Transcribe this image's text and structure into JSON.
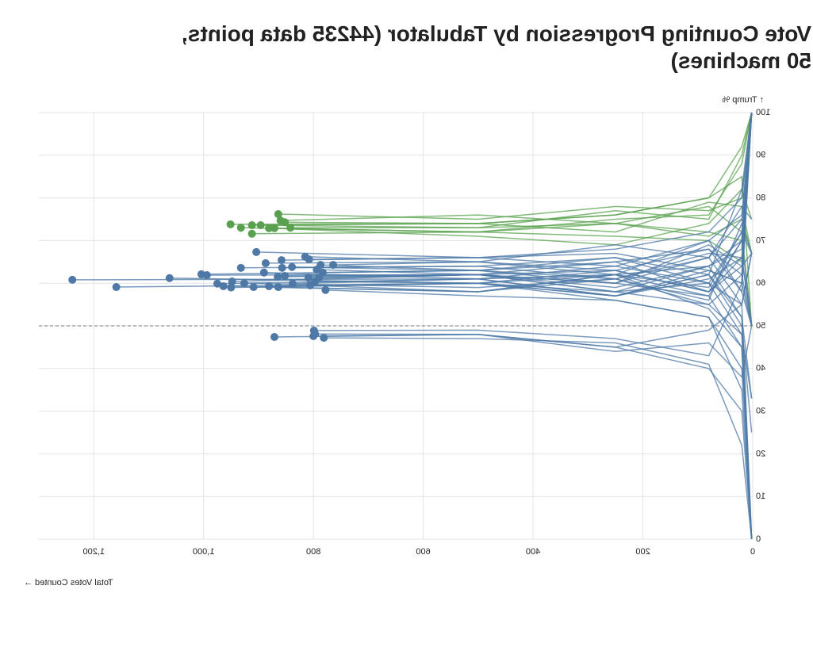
{
  "chart_data": {
    "type": "line",
    "title": "Vote Counting Progression by Tabulator (44235 data points, 50 machines)",
    "x_label": "Total Votes Counted →",
    "y_label": "↑ Trump %",
    "xlim": [
      0,
      1300
    ],
    "ylim": [
      0,
      100
    ],
    "xticks": [
      0,
      200,
      400,
      600,
      800,
      {
        "value": 1000,
        "label": "1,000"
      },
      {
        "value": 1200,
        "label": "1,200"
      }
    ],
    "yticks": [
      0,
      10,
      20,
      30,
      40,
      50,
      60,
      70,
      80,
      90,
      100
    ],
    "grid": true,
    "reference_line": 50,
    "mirrored": true,
    "series": [
      {
        "color": "#59a14f",
        "x": [
          2,
          20,
          80,
          250,
          500,
          864
        ],
        "values": [
          100,
          80,
          77,
          78,
          75,
          76.2
        ]
      },
      {
        "color": "#59a14f",
        "x": [
          2,
          20,
          80,
          250,
          500,
          951
        ],
        "values": [
          50,
          85,
          80,
          76,
          74,
          73.8
        ]
      },
      {
        "color": "#59a14f",
        "x": [
          2,
          20,
          80,
          250,
          500,
          932
        ],
        "values": [
          100,
          70,
          72,
          74,
          72,
          73
        ]
      },
      {
        "color": "#59a14f",
        "x": [
          2,
          20,
          80,
          250,
          500,
          912
        ],
        "values": [
          67,
          78,
          79,
          72,
          74,
          73.6
        ]
      },
      {
        "color": "#59a14f",
        "x": [
          2,
          20,
          80,
          250,
          500,
          896
        ],
        "values": [
          100,
          90,
          75,
          77,
          73,
          73.6
        ]
      },
      {
        "color": "#59a14f",
        "x": [
          2,
          20,
          80,
          250,
          500,
          912
        ],
        "values": [
          100,
          65,
          70,
          71,
          72,
          71.6
        ]
      },
      {
        "color": "#59a14f",
        "x": [
          2,
          20,
          80,
          250,
          500,
          881
        ],
        "values": [
          75,
          82,
          74,
          69,
          71,
          72.9
        ]
      },
      {
        "color": "#59a14f",
        "x": [
          2,
          20,
          80,
          250,
          500,
          871
        ],
        "values": [
          100,
          88,
          76,
          75,
          72,
          72.9
        ]
      },
      {
        "color": "#59a14f",
        "x": [
          2,
          20,
          80,
          250,
          500,
          860
        ],
        "values": [
          50,
          72,
          78,
          74,
          76,
          74.7
        ]
      },
      {
        "color": "#59a14f",
        "x": [
          2,
          20,
          80,
          250,
          500,
          852
        ],
        "values": [
          100,
          92,
          80,
          76,
          74,
          74.3
        ]
      },
      {
        "color": "#59a14f",
        "x": [
          2,
          20,
          80,
          250,
          500,
          842
        ],
        "values": [
          67,
          75,
          71,
          74,
          73,
          73.0
        ]
      },
      {
        "color": "#4e79a7",
        "x": [
          2,
          20,
          80,
          250,
          500,
          1239
        ],
        "values": [
          100,
          70,
          64,
          62,
          61,
          60.8
        ]
      },
      {
        "color": "#4e79a7",
        "x": [
          2,
          20,
          80,
          250,
          500,
          1159
        ],
        "values": [
          0,
          48,
          55,
          58,
          60,
          59.1
        ]
      },
      {
        "color": "#4e79a7",
        "x": [
          2,
          20,
          80,
          250,
          500,
          1062
        ],
        "values": [
          50,
          66,
          58,
          63,
          60,
          61.2
        ]
      },
      {
        "color": "#4e79a7",
        "x": [
          2,
          20,
          80,
          250,
          500,
          1004
        ],
        "values": [
          100,
          75,
          66,
          60,
          63,
          62.1
        ]
      },
      {
        "color": "#4e79a7",
        "x": [
          2,
          20,
          80,
          250,
          500,
          975
        ],
        "values": [
          33,
          52,
          62,
          57,
          61,
          59.9
        ]
      },
      {
        "color": "#4e79a7",
        "x": [
          2,
          20,
          80,
          250,
          500,
          964
        ],
        "values": [
          0,
          45,
          57,
          62,
          58,
          59.3
        ]
      },
      {
        "color": "#4e79a7",
        "x": [
          2,
          20,
          80,
          250,
          500,
          948
        ],
        "values": [
          100,
          68,
          64,
          58,
          62,
          60.4
        ]
      },
      {
        "color": "#4e79a7",
        "x": [
          2,
          20,
          80,
          250,
          500,
          932
        ],
        "values": [
          67,
          55,
          60,
          66,
          64,
          63.6
        ]
      },
      {
        "color": "#4e79a7",
        "x": [
          2,
          20,
          80,
          250,
          500,
          926
        ],
        "values": [
          50,
          62,
          55,
          61,
          59,
          60.0
        ]
      },
      {
        "color": "#4e79a7",
        "x": [
          2,
          20,
          80,
          250,
          500,
          909
        ],
        "values": [
          0,
          40,
          52,
          56,
          60,
          59.1
        ]
      },
      {
        "color": "#4e79a7",
        "x": [
          2,
          20,
          80,
          250,
          500,
          904
        ],
        "values": [
          100,
          80,
          72,
          68,
          66,
          67.3
        ]
      },
      {
        "color": "#4e79a7",
        "x": [
          2,
          20,
          80,
          250,
          500,
          887
        ],
        "values": [
          50,
          58,
          68,
          63,
          65,
          64.7
        ]
      },
      {
        "color": "#4e79a7",
        "x": [
          2,
          20,
          80,
          250,
          500,
          890
        ],
        "values": [
          100,
          72,
          60,
          64,
          61,
          62.5
        ]
      },
      {
        "color": "#4e79a7",
        "x": [
          2,
          20,
          80,
          250,
          500,
          881
        ],
        "values": [
          25,
          50,
          62,
          57,
          60,
          59.3
        ]
      },
      {
        "color": "#4e79a7",
        "x": [
          2,
          20,
          80,
          250,
          500,
          865
        ],
        "values": [
          67,
          64,
          58,
          63,
          62,
          61.5
        ]
      },
      {
        "color": "#4e79a7",
        "x": [
          2,
          20,
          80,
          250,
          500,
          858
        ],
        "values": [
          100,
          76,
          70,
          64,
          66,
          65.4
        ]
      },
      {
        "color": "#4e79a7",
        "x": [
          2,
          20,
          80,
          250,
          500,
          857
        ],
        "values": [
          0,
          55,
          66,
          61,
          64,
          63.6
        ]
      },
      {
        "color": "#4e79a7",
        "x": [
          2,
          20,
          80,
          250,
          500,
          852
        ],
        "values": [
          50,
          70,
          57,
          60,
          62,
          61.7
        ]
      },
      {
        "color": "#4e79a7",
        "x": [
          2,
          20,
          80,
          250,
          500,
          839
        ],
        "values": [
          100,
          62,
          68,
          65,
          63,
          63.8
        ]
      },
      {
        "color": "#4e79a7",
        "x": [
          2,
          20,
          80,
          250,
          500,
          815
        ],
        "values": [
          75,
          78,
          66,
          69,
          65,
          66.2
        ]
      },
      {
        "color": "#4e79a7",
        "x": [
          2,
          20,
          80,
          250,
          500,
          808
        ],
        "values": [
          100,
          60,
          63,
          67,
          66,
          65.6
        ]
      },
      {
        "color": "#4e79a7",
        "x": [
          2,
          20,
          80,
          250,
          500,
          809
        ],
        "values": [
          0,
          52,
          64,
          59,
          62,
          61.3
        ]
      },
      {
        "color": "#4e79a7",
        "x": [
          2,
          20,
          80,
          250,
          500,
          797
        ],
        "values": [
          67,
          72,
          59,
          62,
          60,
          60.4
        ]
      },
      {
        "color": "#4e79a7",
        "x": [
          2,
          20,
          80,
          250,
          500,
          790
        ],
        "values": [
          33,
          48,
          60,
          58,
          62,
          61.3
        ]
      },
      {
        "color": "#4e79a7",
        "x": [
          2,
          20,
          80,
          250,
          500,
          787
        ],
        "values": [
          100,
          82,
          62,
          66,
          63,
          64.3
        ]
      },
      {
        "color": "#4e79a7",
        "x": [
          2,
          20,
          80,
          250,
          500,
          783
        ],
        "values": [
          50,
          66,
          67,
          61,
          63,
          62.5
        ]
      },
      {
        "color": "#4e79a7",
        "x": [
          2,
          20,
          80,
          250,
          500,
          778
        ],
        "values": [
          0,
          35,
          52,
          56,
          57,
          58.4
        ]
      },
      {
        "color": "#4e79a7",
        "x": [
          2,
          20,
          80,
          250,
          500,
          764
        ],
        "values": [
          100,
          58,
          70,
          62,
          65,
          64.3
        ]
      },
      {
        "color": "#4e79a7",
        "x": [
          2,
          20,
          80,
          250,
          500,
          806
        ],
        "values": [
          67,
          74,
          56,
          61,
          58,
          59.5
        ]
      },
      {
        "color": "#4e79a7",
        "x": [
          2,
          20,
          80,
          250,
          500,
          994
        ],
        "values": [
          100,
          64,
          69,
          60,
          62,
          61.9
        ]
      },
      {
        "color": "#4e79a7",
        "x": [
          2,
          20,
          80,
          250,
          500,
          864
        ],
        "values": [
          0,
          45,
          54,
          62,
          58,
          59.1
        ]
      },
      {
        "color": "#4e79a7",
        "x": [
          2,
          20,
          80,
          250,
          500,
          838
        ],
        "values": [
          50,
          60,
          63,
          57,
          61,
          59.9
        ]
      },
      {
        "color": "#4e79a7",
        "x": [
          2,
          20,
          80,
          250,
          500,
          794
        ],
        "values": [
          100,
          70,
          58,
          65,
          62,
          63.2
        ]
      },
      {
        "color": "#4e79a7",
        "x": [
          2,
          20,
          80,
          250,
          500,
          871
        ],
        "values": [
          0,
          30,
          40,
          45,
          48,
          47.4
        ]
      },
      {
        "color": "#4e79a7",
        "x": [
          2,
          20,
          80,
          250,
          500,
          799
        ],
        "values": [
          100,
          60,
          43,
          47,
          49,
          48.9
        ]
      },
      {
        "color": "#4e79a7",
        "x": [
          2,
          20,
          80,
          250,
          500,
          800
        ],
        "values": [
          50,
          38,
          46,
          44,
          48,
          47.6
        ]
      },
      {
        "color": "#4e79a7",
        "x": [
          2,
          20,
          80,
          250,
          500,
          781
        ],
        "values": [
          0,
          22,
          41,
          46,
          47,
          47.2
        ]
      },
      {
        "color": "#4e79a7",
        "x": [
          2,
          20,
          80,
          250,
          500,
          797
        ],
        "values": [
          67,
          55,
          49,
          45,
          48,
          48.1
        ]
      },
      {
        "color": "#4e79a7",
        "x": [
          2,
          20,
          80,
          250,
          500,
          950
        ],
        "values": [
          100,
          66,
          61,
          57,
          60,
          59.0
        ]
      }
    ]
  }
}
